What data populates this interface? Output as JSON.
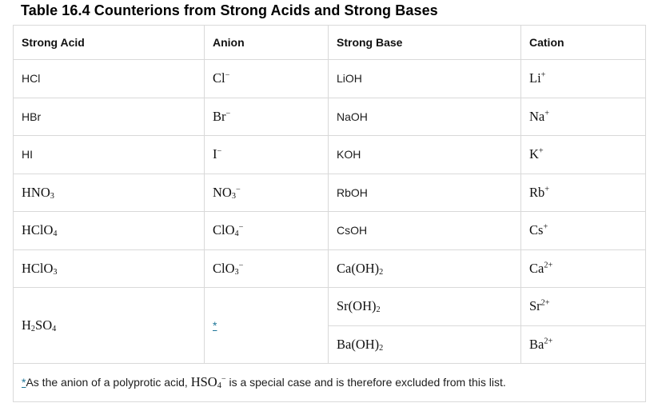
{
  "title": "Table 16.4 Counterions from Strong Acids and Strong Bases",
  "colors": {
    "link": "#1e7698",
    "border": "#d9d9d9",
    "text": "#1c1c1c"
  },
  "table": {
    "headers": [
      {
        "label": "Strong Acid",
        "name": "column-header-strong-acid"
      },
      {
        "label": "Anion",
        "name": "column-header-anion"
      },
      {
        "label": "Strong Base",
        "name": "column-header-strong-base"
      },
      {
        "label": "Cation",
        "name": "column-header-cation"
      }
    ],
    "rows": [
      [
        {
          "segs": [
            {
              "t": "HCl"
            }
          ]
        },
        {
          "serif": true,
          "segs": [
            {
              "t": "Cl"
            },
            {
              "t": "−",
              "v": "sup"
            }
          ]
        },
        {
          "segs": [
            {
              "t": "LiOH"
            }
          ]
        },
        {
          "serif": true,
          "segs": [
            {
              "t": "Li"
            },
            {
              "t": "+",
              "v": "sup"
            }
          ]
        }
      ],
      [
        {
          "segs": [
            {
              "t": "HBr"
            }
          ]
        },
        {
          "serif": true,
          "segs": [
            {
              "t": "Br"
            },
            {
              "t": "−",
              "v": "sup"
            }
          ]
        },
        {
          "segs": [
            {
              "t": "NaOH"
            }
          ]
        },
        {
          "serif": true,
          "segs": [
            {
              "t": "Na"
            },
            {
              "t": "+",
              "v": "sup"
            }
          ]
        }
      ],
      [
        {
          "segs": [
            {
              "t": "HI"
            }
          ]
        },
        {
          "serif": true,
          "segs": [
            {
              "t": "I"
            },
            {
              "t": "−",
              "v": "sup"
            }
          ]
        },
        {
          "segs": [
            {
              "t": "KOH"
            }
          ]
        },
        {
          "serif": true,
          "segs": [
            {
              "t": "K"
            },
            {
              "t": "+",
              "v": "sup"
            }
          ]
        }
      ],
      [
        {
          "serif": true,
          "segs": [
            {
              "t": "HNO"
            },
            {
              "t": "3",
              "v": "sub"
            }
          ]
        },
        {
          "serif": true,
          "segs": [
            {
              "t": "NO"
            },
            {
              "t": "3",
              "v": "sub"
            },
            {
              "t": "−",
              "v": "sup"
            }
          ]
        },
        {
          "segs": [
            {
              "t": "RbOH"
            }
          ]
        },
        {
          "serif": true,
          "segs": [
            {
              "t": "Rb"
            },
            {
              "t": "+",
              "v": "sup"
            }
          ]
        }
      ],
      [
        {
          "serif": true,
          "segs": [
            {
              "t": "HClO"
            },
            {
              "t": "4",
              "v": "sub"
            }
          ]
        },
        {
          "serif": true,
          "segs": [
            {
              "t": "ClO"
            },
            {
              "t": "4",
              "v": "sub"
            },
            {
              "t": "−",
              "v": "sup"
            }
          ]
        },
        {
          "segs": [
            {
              "t": "CsOH"
            }
          ]
        },
        {
          "serif": true,
          "segs": [
            {
              "t": "Cs"
            },
            {
              "t": "+",
              "v": "sup"
            }
          ]
        }
      ],
      [
        {
          "serif": true,
          "segs": [
            {
              "t": "HClO"
            },
            {
              "t": "3",
              "v": "sub"
            }
          ]
        },
        {
          "serif": true,
          "segs": [
            {
              "t": "ClO"
            },
            {
              "t": "3",
              "v": "sub"
            },
            {
              "t": "−",
              "v": "sup"
            }
          ]
        },
        {
          "serif": true,
          "segs": [
            {
              "t": "Ca(OH)"
            },
            {
              "t": "2",
              "v": "sub"
            }
          ]
        },
        {
          "serif": true,
          "segs": [
            {
              "t": "Ca"
            },
            {
              "t": "2+",
              "v": "sup"
            }
          ]
        }
      ],
      [
        {
          "serif": true,
          "rowspan": 2,
          "segs": [
            {
              "t": "H"
            },
            {
              "t": "2",
              "v": "sub"
            },
            {
              "t": "SO"
            },
            {
              "t": "4",
              "v": "sub"
            }
          ]
        },
        {
          "rowspan": 2,
          "link": true,
          "segs": [
            {
              "t": "*"
            }
          ]
        },
        {
          "serif": true,
          "segs": [
            {
              "t": "Sr(OH)"
            },
            {
              "t": "2",
              "v": "sub"
            }
          ]
        },
        {
          "serif": true,
          "segs": [
            {
              "t": "Sr"
            },
            {
              "t": "2+",
              "v": "sup"
            }
          ]
        }
      ],
      [
        {
          "serif": true,
          "segs": [
            {
              "t": "Ba(OH)"
            },
            {
              "t": "2",
              "v": "sub"
            }
          ]
        },
        {
          "serif": true,
          "segs": [
            {
              "t": "Ba"
            },
            {
              "t": "2+",
              "v": "sup"
            }
          ]
        }
      ]
    ],
    "footnote": {
      "link": "*",
      "segments": [
        {
          "t": "As the anion of a polyprotic acid, "
        },
        {
          "t": "HSO",
          "serif": true
        },
        {
          "t": "4",
          "serif": true,
          "v": "sub"
        },
        {
          "t": "−",
          "serif": true,
          "v": "sup"
        },
        {
          "t": " is a special case and is therefore excluded from this list."
        }
      ]
    }
  }
}
